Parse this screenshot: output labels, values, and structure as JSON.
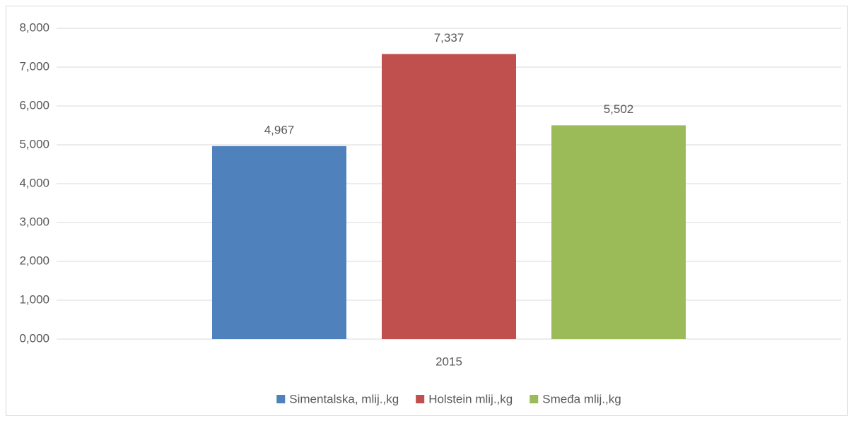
{
  "chart_data": {
    "type": "bar",
    "categories": [
      "2015"
    ],
    "series": [
      {
        "name": "Simentalska, mlij.,kg",
        "color": "#4f81bd",
        "values": [
          4.967
        ],
        "value_labels": [
          "4,967"
        ]
      },
      {
        "name": "Holstein mlij.,kg",
        "color": "#c0504d",
        "values": [
          7.337
        ],
        "value_labels": [
          "7,337"
        ]
      },
      {
        "name": "Smeđa mlij.,kg",
        "color": "#9bbb59",
        "values": [
          5.502
        ],
        "value_labels": [
          "5,502"
        ]
      }
    ],
    "ylim": [
      0,
      8
    ],
    "yticks": [
      {
        "value": 0,
        "label": "0,000"
      },
      {
        "value": 1,
        "label": "1,000"
      },
      {
        "value": 2,
        "label": "2,000"
      },
      {
        "value": 3,
        "label": "3,000"
      },
      {
        "value": 4,
        "label": "4,000"
      },
      {
        "value": 5,
        "label": "5,000"
      },
      {
        "value": 6,
        "label": "6,000"
      },
      {
        "value": 7,
        "label": "7,000"
      },
      {
        "value": 8,
        "label": "8,000"
      }
    ],
    "grid": true,
    "legend": "bottom"
  }
}
